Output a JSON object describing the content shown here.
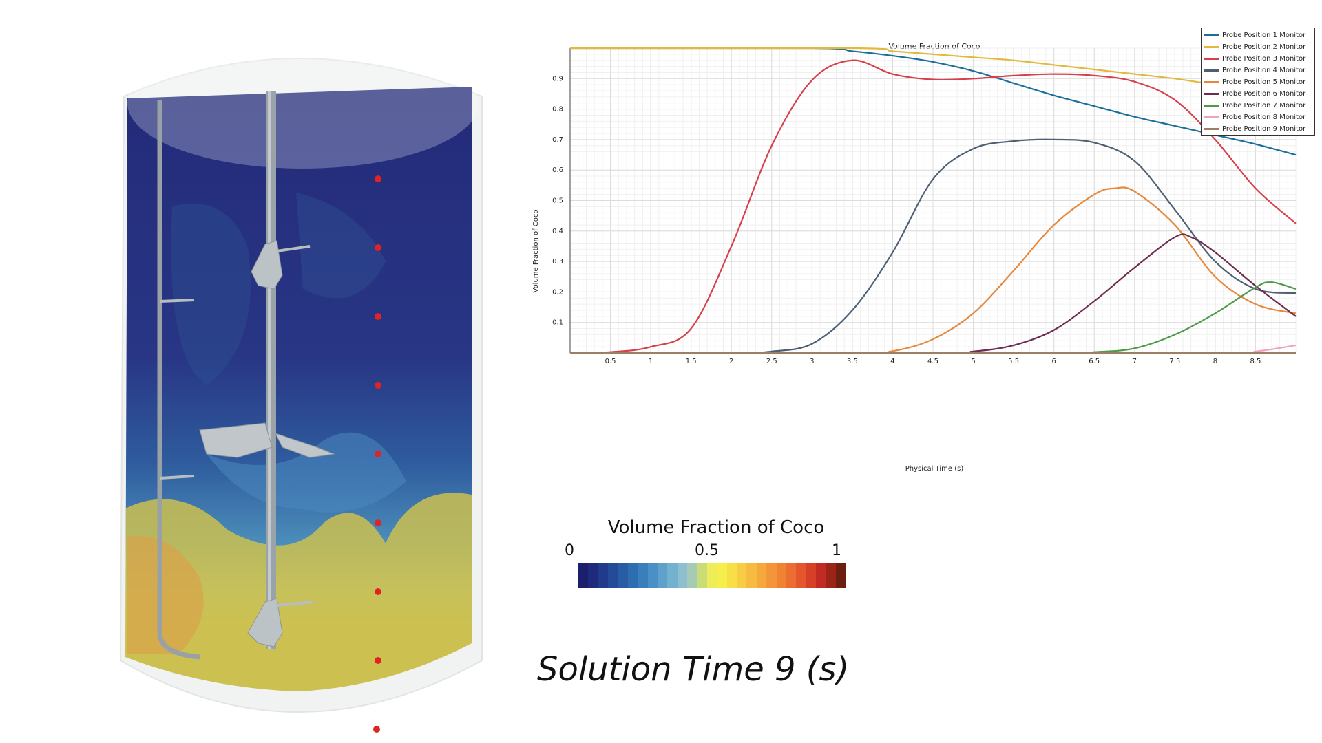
{
  "chart_data": {
    "type": "line",
    "title": "Volume Fraction of Coco",
    "xlabel": "Physical Time (s)",
    "ylabel": "Volume Fraction of Coco",
    "xlim": [
      0,
      9
    ],
    "ylim": [
      0,
      1
    ],
    "x_ticks": [
      "0.5",
      "1",
      "1.5",
      "2",
      "2.5",
      "3",
      "3.5",
      "4",
      "4.5",
      "5",
      "5.5",
      "6",
      "6.5",
      "7",
      "7.5",
      "8",
      "8.5"
    ],
    "y_ticks": [
      "0.1",
      "0.2",
      "0.3",
      "0.4",
      "0.5",
      "0.6",
      "0.7",
      "0.8",
      "0.9"
    ],
    "grid": true,
    "legend_position": "top-right",
    "series": [
      {
        "name": "Probe Position 1 Monitor",
        "color": "#1a6f9a",
        "points": [
          [
            0,
            1
          ],
          [
            3,
            1
          ],
          [
            3.5,
            0.99
          ],
          [
            4,
            0.975
          ],
          [
            4.5,
            0.955
          ],
          [
            5,
            0.925
          ],
          [
            5.5,
            0.885
          ],
          [
            6,
            0.845
          ],
          [
            6.5,
            0.81
          ],
          [
            7,
            0.775
          ],
          [
            7.5,
            0.745
          ],
          [
            8,
            0.715
          ],
          [
            8.5,
            0.685
          ],
          [
            9,
            0.65
          ]
        ]
      },
      {
        "name": "Probe Position 2 Monitor",
        "color": "#e3b93c",
        "points": [
          [
            0,
            1
          ],
          [
            3.5,
            1
          ],
          [
            4,
            0.99
          ],
          [
            4.5,
            0.98
          ],
          [
            5,
            0.97
          ],
          [
            5.5,
            0.96
          ],
          [
            6,
            0.945
          ],
          [
            6.5,
            0.93
          ],
          [
            7,
            0.915
          ],
          [
            7.5,
            0.9
          ],
          [
            8,
            0.88
          ],
          [
            8.5,
            0.86
          ],
          [
            9,
            0.84
          ]
        ]
      },
      {
        "name": "Probe Position 3 Monitor",
        "color": "#d6404b",
        "points": [
          [
            0,
            0
          ],
          [
            0.5,
            0.003
          ],
          [
            1,
            0.02
          ],
          [
            1.5,
            0.08
          ],
          [
            2,
            0.35
          ],
          [
            2.5,
            0.68
          ],
          [
            3,
            0.895
          ],
          [
            3.5,
            0.96
          ],
          [
            4,
            0.915
          ],
          [
            4.5,
            0.897
          ],
          [
            5,
            0.9
          ],
          [
            5.5,
            0.91
          ],
          [
            6,
            0.915
          ],
          [
            6.5,
            0.91
          ],
          [
            7,
            0.89
          ],
          [
            7.5,
            0.83
          ],
          [
            8,
            0.7
          ],
          [
            8.5,
            0.54
          ],
          [
            9,
            0.425
          ]
        ]
      },
      {
        "name": "Probe Position 4 Monitor",
        "color": "#4e5f73",
        "points": [
          [
            0,
            0
          ],
          [
            2,
            0
          ],
          [
            2.5,
            0.005
          ],
          [
            3,
            0.03
          ],
          [
            3.5,
            0.14
          ],
          [
            4,
            0.33
          ],
          [
            4.5,
            0.57
          ],
          [
            5,
            0.67
          ],
          [
            5.5,
            0.695
          ],
          [
            6,
            0.7
          ],
          [
            6.5,
            0.69
          ],
          [
            7,
            0.63
          ],
          [
            7.5,
            0.47
          ],
          [
            8,
            0.3
          ],
          [
            8.5,
            0.21
          ],
          [
            9,
            0.196
          ]
        ]
      },
      {
        "name": "Probe Position 5 Monitor",
        "color": "#e6873a",
        "points": [
          [
            0,
            0
          ],
          [
            3.5,
            0
          ],
          [
            4,
            0.006
          ],
          [
            4.5,
            0.045
          ],
          [
            5,
            0.13
          ],
          [
            5.5,
            0.27
          ],
          [
            6,
            0.42
          ],
          [
            6.5,
            0.52
          ],
          [
            6.75,
            0.54
          ],
          [
            7,
            0.53
          ],
          [
            7.5,
            0.42
          ],
          [
            8,
            0.25
          ],
          [
            8.5,
            0.16
          ],
          [
            9,
            0.13
          ]
        ]
      },
      {
        "name": "Probe Position 6 Monitor",
        "color": "#6e2c4f",
        "points": [
          [
            0,
            0
          ],
          [
            4.5,
            0
          ],
          [
            5,
            0.005
          ],
          [
            5.5,
            0.025
          ],
          [
            6,
            0.075
          ],
          [
            6.5,
            0.17
          ],
          [
            7,
            0.28
          ],
          [
            7.5,
            0.38
          ],
          [
            7.7,
            0.38
          ],
          [
            8,
            0.33
          ],
          [
            8.5,
            0.22
          ],
          [
            9,
            0.12
          ]
        ]
      },
      {
        "name": "Probe Position 7 Monitor",
        "color": "#4f9a48",
        "points": [
          [
            0,
            0
          ],
          [
            6,
            0
          ],
          [
            6.5,
            0.003
          ],
          [
            7,
            0.015
          ],
          [
            7.5,
            0.06
          ],
          [
            8,
            0.13
          ],
          [
            8.5,
            0.215
          ],
          [
            8.7,
            0.232
          ],
          [
            9,
            0.21
          ]
        ]
      },
      {
        "name": "Probe Position 8 Monitor",
        "color": "#f0a3b8",
        "points": [
          [
            0,
            0
          ],
          [
            8,
            0
          ],
          [
            8.5,
            0.005
          ],
          [
            9,
            0.025
          ]
        ]
      },
      {
        "name": "Probe Position 9 Monitor",
        "color": "#a07e61",
        "points": [
          [
            0,
            0
          ],
          [
            9,
            0
          ]
        ]
      }
    ]
  },
  "colorbar": {
    "title": "Volume Fraction of Coco",
    "min_label": "0",
    "mid_label": "0.5",
    "max_label": "1",
    "colors": [
      "#1c1f6e",
      "#1e2b7d",
      "#213a8b",
      "#244b98",
      "#285ca5",
      "#2d6db1",
      "#3a7fbc",
      "#4b90c4",
      "#5ea1cb",
      "#74b1cf",
      "#8dbfcf",
      "#a6cbb5",
      "#c9dc78",
      "#eded5a",
      "#f6ee4c",
      "#f8df48",
      "#f7cd44",
      "#f6bb40",
      "#f5a83c",
      "#f39538",
      "#f08234",
      "#ec6d30",
      "#e4562b",
      "#d73f26",
      "#c22b21",
      "#9a2417",
      "#6d1f0f"
    ]
  },
  "solution_time": "Solution Time 9 (s)",
  "probes": 9
}
